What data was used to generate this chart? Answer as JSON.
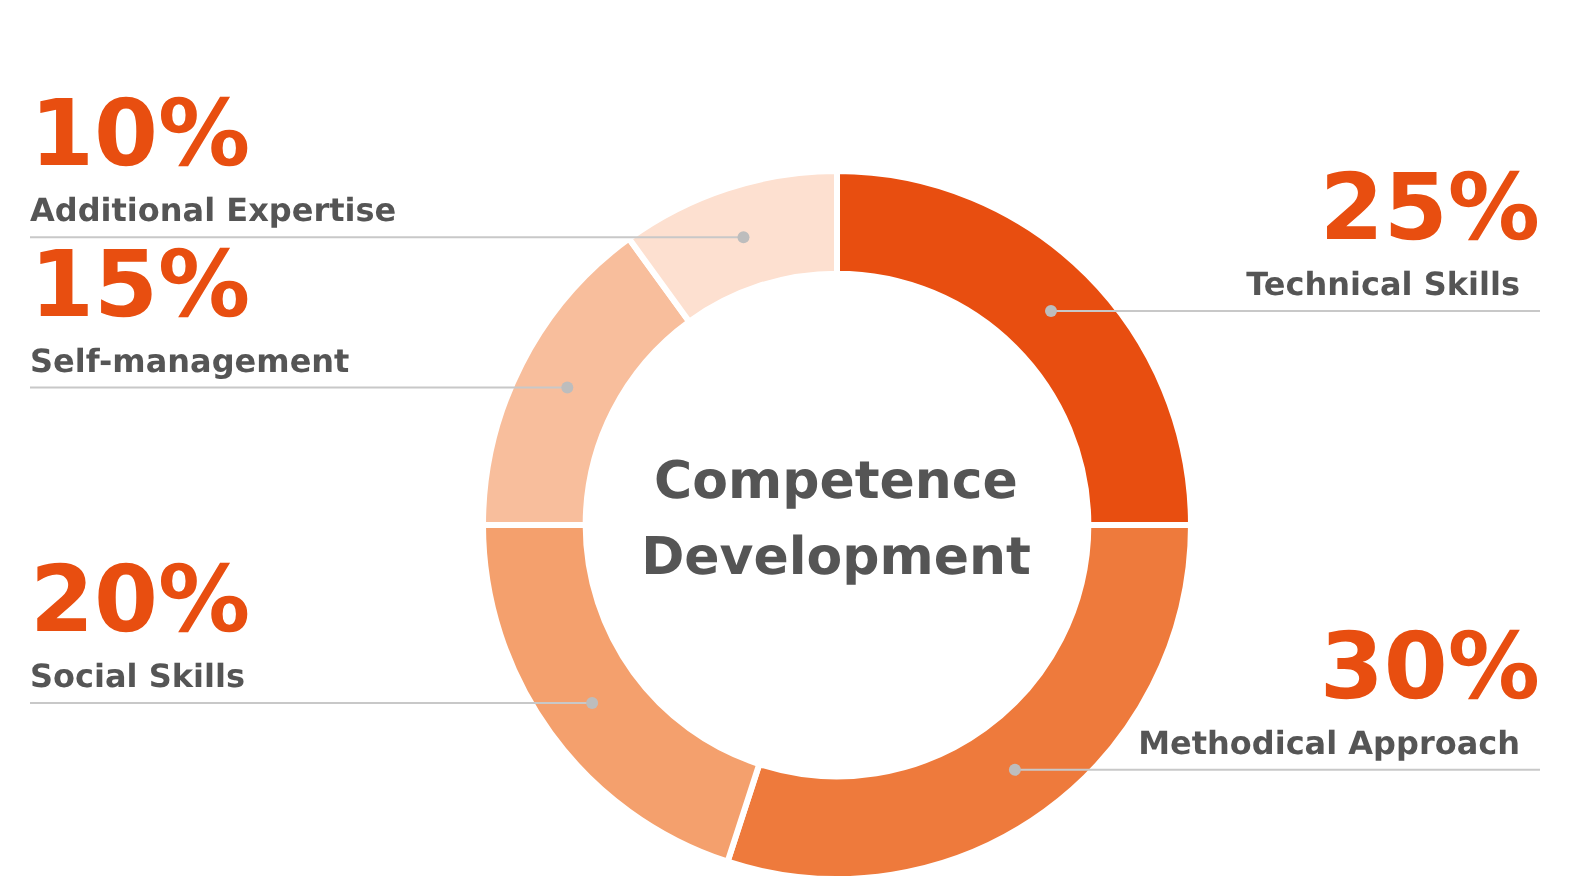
{
  "chart_data": {
    "type": "donut",
    "title": "Competence Development",
    "categories": [
      "Technical Skills",
      "Methodical Approach",
      "Social Skills",
      "Self-management",
      "Additional Expertise"
    ],
    "values": [
      25,
      30,
      20,
      15,
      10
    ],
    "colors": [
      "#e84e10",
      "#ee7a3c",
      "#f4a06d",
      "#f8be9c",
      "#fde0d0"
    ],
    "value_labels": [
      "25%",
      "30%",
      "20%",
      "15%",
      "10%"
    ],
    "legend": false
  }
}
